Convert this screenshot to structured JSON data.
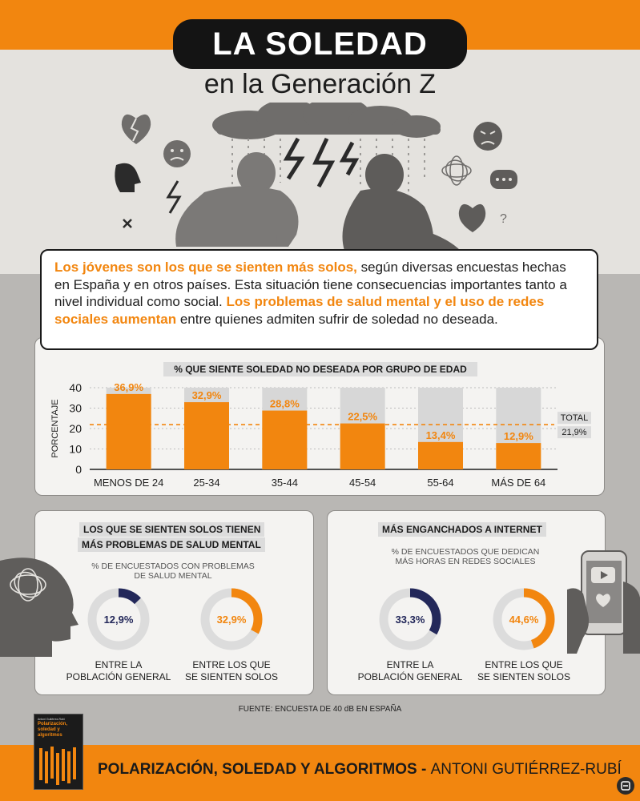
{
  "title": "LA SOLEDAD",
  "subtitle": "en la Generación Z",
  "intro": {
    "highlight1": "Los jóvenes son los que se sienten más solos,",
    "text1": " según diversas encuestas hechas en España y en otros países. Esta situación tiene consecuencias importantes tanto a nivel individual como social. ",
    "highlight2": "Los problemas de salud mental y el uso de redes sociales aumentan",
    "text2": " entre quienes admiten sufrir de soledad no deseada."
  },
  "colors": {
    "orange": "#f2860f",
    "navy": "#23285a",
    "gray_bar": "#d7d7d7",
    "dark": "#141414"
  },
  "chart_data": [
    {
      "type": "bar",
      "title": "% QUE SIENTE SOLEDAD NO DESEADA POR GRUPO DE EDAD",
      "ylabel": "PORCENTAJE",
      "categories": [
        "MENOS DE 24",
        "25-34",
        "35-44",
        "45-54",
        "55-64",
        "MÁS DE 64"
      ],
      "values": [
        36.9,
        32.9,
        28.8,
        22.5,
        13.4,
        12.9
      ],
      "value_labels": [
        "36,9%",
        "32,9%",
        "28,8%",
        "22,5%",
        "13,4%",
        "12,9%"
      ],
      "ylim": [
        0,
        40
      ],
      "yticks": [
        "0",
        "10",
        "20",
        "30",
        "40"
      ],
      "reference_line": {
        "label": "TOTAL",
        "value": 21.9,
        "value_label": "21,9%"
      },
      "grid": true
    },
    {
      "type": "pie",
      "title": "LOS QUE SE SIENTEN SOLOS TIENEN MÁS PROBLEMAS DE SALUD MENTAL",
      "subtitle": "% DE ENCUESTADOS CON PROBLEMAS DE SALUD MENTAL",
      "items": [
        {
          "label": "ENTRE LA POBLACIÓN GENERAL",
          "value": 12.9,
          "value_label": "12,9%",
          "color": "#23285a"
        },
        {
          "label": "ENTRE LOS QUE SE SIENTEN SOLOS",
          "value": 32.9,
          "value_label": "32,9%",
          "color": "#f2860f"
        }
      ]
    },
    {
      "type": "pie",
      "title": "MÁS ENGANCHADOS A INTERNET",
      "subtitle": "% DE ENCUESTADOS QUE DEDICAN MÁS HORAS EN REDES SOCIALES",
      "items": [
        {
          "label": "ENTRE LA POBLACIÓN GENERAL",
          "value": 33.3,
          "value_label": "33,3%",
          "color": "#23285a"
        },
        {
          "label": "ENTRE LOS QUE SE SIENTEN SOLOS",
          "value": 44.6,
          "value_label": "44,6%",
          "color": "#f2860f"
        }
      ]
    }
  ],
  "panels": {
    "left_title_line1": "LOS QUE SE SIENTEN SOLOS TIENEN",
    "left_title_line2": "MÁS PROBLEMAS DE SALUD MENTAL",
    "left_note": "% DE ENCUESTADOS CON PROBLEMAS DE SALUD MENTAL",
    "right_title": "MÁS ENGANCHADOS A INTERNET",
    "right_note": "% DE ENCUESTADOS QUE DEDICAN MÁS HORAS EN REDES SOCIALES"
  },
  "source": "FUENTE: ENCUESTA DE 40 dB EN ESPAÑA",
  "footer": {
    "bold": "POLARIZACIÓN, SOLEDAD Y ALGORITMOS - ",
    "regular": "ANTONI GUTIÉRREZ-RUBÍ"
  },
  "book": {
    "author": "Antoni Gutiérrez-Rubí",
    "title": "Polarización, soledad y algoritmos"
  },
  "icons": [
    "broken-heart-icon",
    "sad-face-icon",
    "angry-face-icon",
    "storm-cloud-icon",
    "lightning-icon",
    "speech-bubble-icon",
    "head-tangle-icon",
    "smartphone-icon",
    "video-icon",
    "heart-icon",
    "question-icon",
    "screaming-head-icon"
  ]
}
